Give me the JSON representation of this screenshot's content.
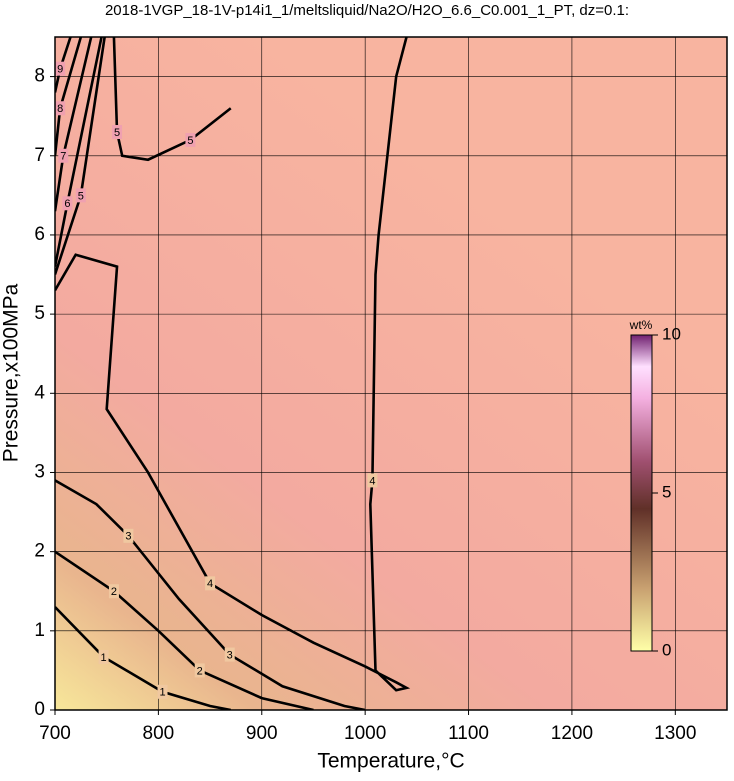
{
  "chart_data": {
    "type": "contour",
    "title": "2018-1VGP_18-1V-p14i1_1/meltsliquid/Na2O/H2O_6.6_C0.001_1_PT, dz=0.1:",
    "x_label": "Temperature,°C",
    "y_label": "Pressure,x100MPa",
    "xlim": [
      700,
      1350
    ],
    "ylim": [
      0,
      8.5
    ],
    "xticks": [
      700,
      800,
      900,
      1000,
      1100,
      1200,
      1300
    ],
    "yticks": [
      0,
      1,
      2,
      3,
      4,
      5,
      6,
      7,
      8
    ],
    "grid": true,
    "line_color": "#000000",
    "levels": [
      {
        "value": 1,
        "x": [
          700,
          747,
          804,
          850,
          870
        ],
        "y": [
          1.3,
          0.67,
          0.23,
          0.05,
          0
        ]
      },
      {
        "value": 2,
        "x": [
          700,
          757,
          800,
          840,
          900,
          950
        ],
        "y": [
          2.0,
          1.5,
          1.0,
          0.5,
          0.15,
          0
        ]
      },
      {
        "value": 3,
        "x": [
          700,
          740,
          771,
          820,
          869,
          920,
          980,
          1000
        ],
        "y": [
          2.9,
          2.6,
          2.2,
          1.4,
          0.7,
          0.3,
          0.05,
          0
        ]
      },
      {
        "value": 4,
        "x": [
          700,
          720,
          760,
          750,
          790,
          850,
          900,
          950,
          1000,
          1030,
          1040,
          1030,
          1010,
          1005,
          1007,
          1010,
          1013,
          1030,
          1040
        ],
        "y": [
          5.3,
          5.75,
          5.6,
          3.8,
          3.0,
          1.6,
          1.2,
          0.85,
          0.55,
          0.35,
          0.28,
          0.25,
          0.5,
          2.6,
          2.9,
          5.5,
          6.0,
          8.0,
          8.5
        ]
      },
      {
        "value": 5,
        "x": [
          757,
          760,
          765,
          790,
          831,
          870,
          null,
          700,
          725,
          748
        ],
        "y": [
          8.5,
          7.3,
          7.0,
          6.95,
          7.2,
          7.6,
          null,
          5.5,
          6.5,
          8.5
        ]
      },
      {
        "value": 6,
        "x": [
          700,
          712,
          745
        ],
        "y": [
          5.6,
          6.4,
          8.5
        ]
      },
      {
        "value": 7,
        "x": [
          700,
          708,
          735
        ],
        "y": [
          6.3,
          7.0,
          8.5
        ]
      },
      {
        "value": 8,
        "x": [
          700,
          705,
          725
        ],
        "y": [
          7.0,
          7.6,
          8.5
        ]
      },
      {
        "value": 9,
        "x": [
          700,
          705,
          715
        ],
        "y": [
          7.8,
          8.1,
          8.5
        ]
      }
    ],
    "colorbar": {
      "label": "wt%",
      "lim": [
        0,
        10
      ],
      "ticks": [
        0,
        5,
        10
      ]
    }
  }
}
